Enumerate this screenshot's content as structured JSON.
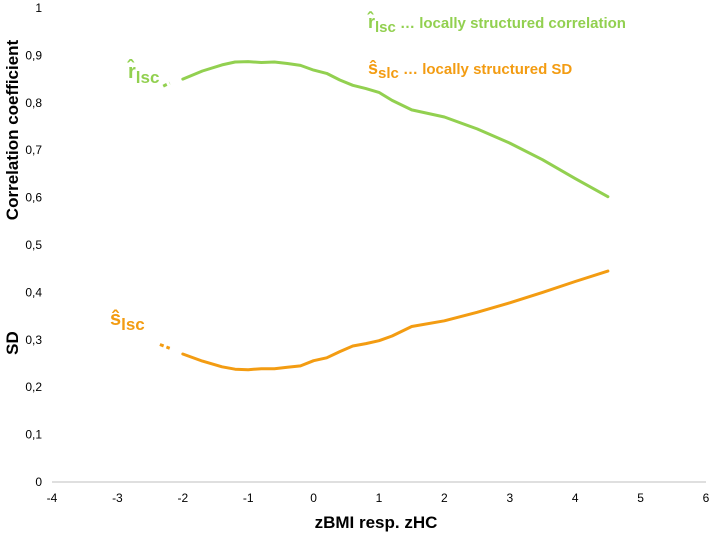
{
  "chart_data": {
    "type": "line",
    "xlabel": "zBMI resp. zHC",
    "ylabel_top": "Correlation coefficient",
    "ylabel_bottom": "SD",
    "xlim": [
      -4,
      6
    ],
    "ylim": [
      0,
      1
    ],
    "x_ticks": [
      "-4",
      "-3",
      "-2",
      "-1",
      "0",
      "1",
      "2",
      "3",
      "4",
      "5",
      "6"
    ],
    "y_ticks": [
      "0",
      "0,1",
      "0,2",
      "0,3",
      "0,4",
      "0,5",
      "0,6",
      "0,7",
      "0,8",
      "0,9",
      "1"
    ],
    "grid": false,
    "series": [
      {
        "name": "locally structured correlation",
        "symbol": "r̂",
        "subscript": "lsc",
        "color": "#92D050",
        "x": [
          -2.0,
          -1.7,
          -1.4,
          -1.2,
          -1.0,
          -0.8,
          -0.6,
          -0.4,
          -0.2,
          0.0,
          0.2,
          0.4,
          0.6,
          0.8,
          1.0,
          1.2,
          1.5,
          2.0,
          2.5,
          3.0,
          3.5,
          4.0,
          4.5
        ],
        "values": [
          0.85,
          0.867,
          0.88,
          0.886,
          0.887,
          0.885,
          0.886,
          0.883,
          0.879,
          0.869,
          0.862,
          0.848,
          0.837,
          0.83,
          0.822,
          0.805,
          0.785,
          0.77,
          0.745,
          0.715,
          0.68,
          0.64,
          0.602
        ],
        "dashed_x": [
          -2.3,
          -2.2
        ],
        "dashed_values": [
          0.835,
          0.842
        ]
      },
      {
        "name": "locally structured SD",
        "symbol": "ŝ",
        "subscript": "slc",
        "color": "#F39C12",
        "x": [
          -2.0,
          -1.7,
          -1.4,
          -1.2,
          -1.0,
          -0.8,
          -0.6,
          -0.4,
          -0.2,
          0.0,
          0.2,
          0.4,
          0.6,
          0.8,
          1.0,
          1.2,
          1.5,
          2.0,
          2.5,
          3.0,
          3.5,
          4.0,
          4.5
        ],
        "values": [
          0.27,
          0.255,
          0.243,
          0.238,
          0.237,
          0.239,
          0.239,
          0.242,
          0.245,
          0.256,
          0.262,
          0.275,
          0.287,
          0.292,
          0.298,
          0.308,
          0.328,
          0.34,
          0.358,
          0.378,
          0.4,
          0.423,
          0.445
        ],
        "dashed_x": [
          -2.35,
          -2.2
        ],
        "dashed_values": [
          0.29,
          0.282
        ]
      }
    ],
    "annotations": {
      "curve_label_r": "r̂",
      "curve_label_r_sub": "lsc",
      "curve_label_s": "ŝ",
      "curve_label_s_sub": "lsc",
      "legend_r_symbol": "r̂",
      "legend_r_sub": "lsc",
      "legend_r_text": " … locally structured correlation",
      "legend_s_symbol": "ŝ",
      "legend_s_sub": "slc",
      "legend_s_text": " … locally structured SD"
    }
  }
}
